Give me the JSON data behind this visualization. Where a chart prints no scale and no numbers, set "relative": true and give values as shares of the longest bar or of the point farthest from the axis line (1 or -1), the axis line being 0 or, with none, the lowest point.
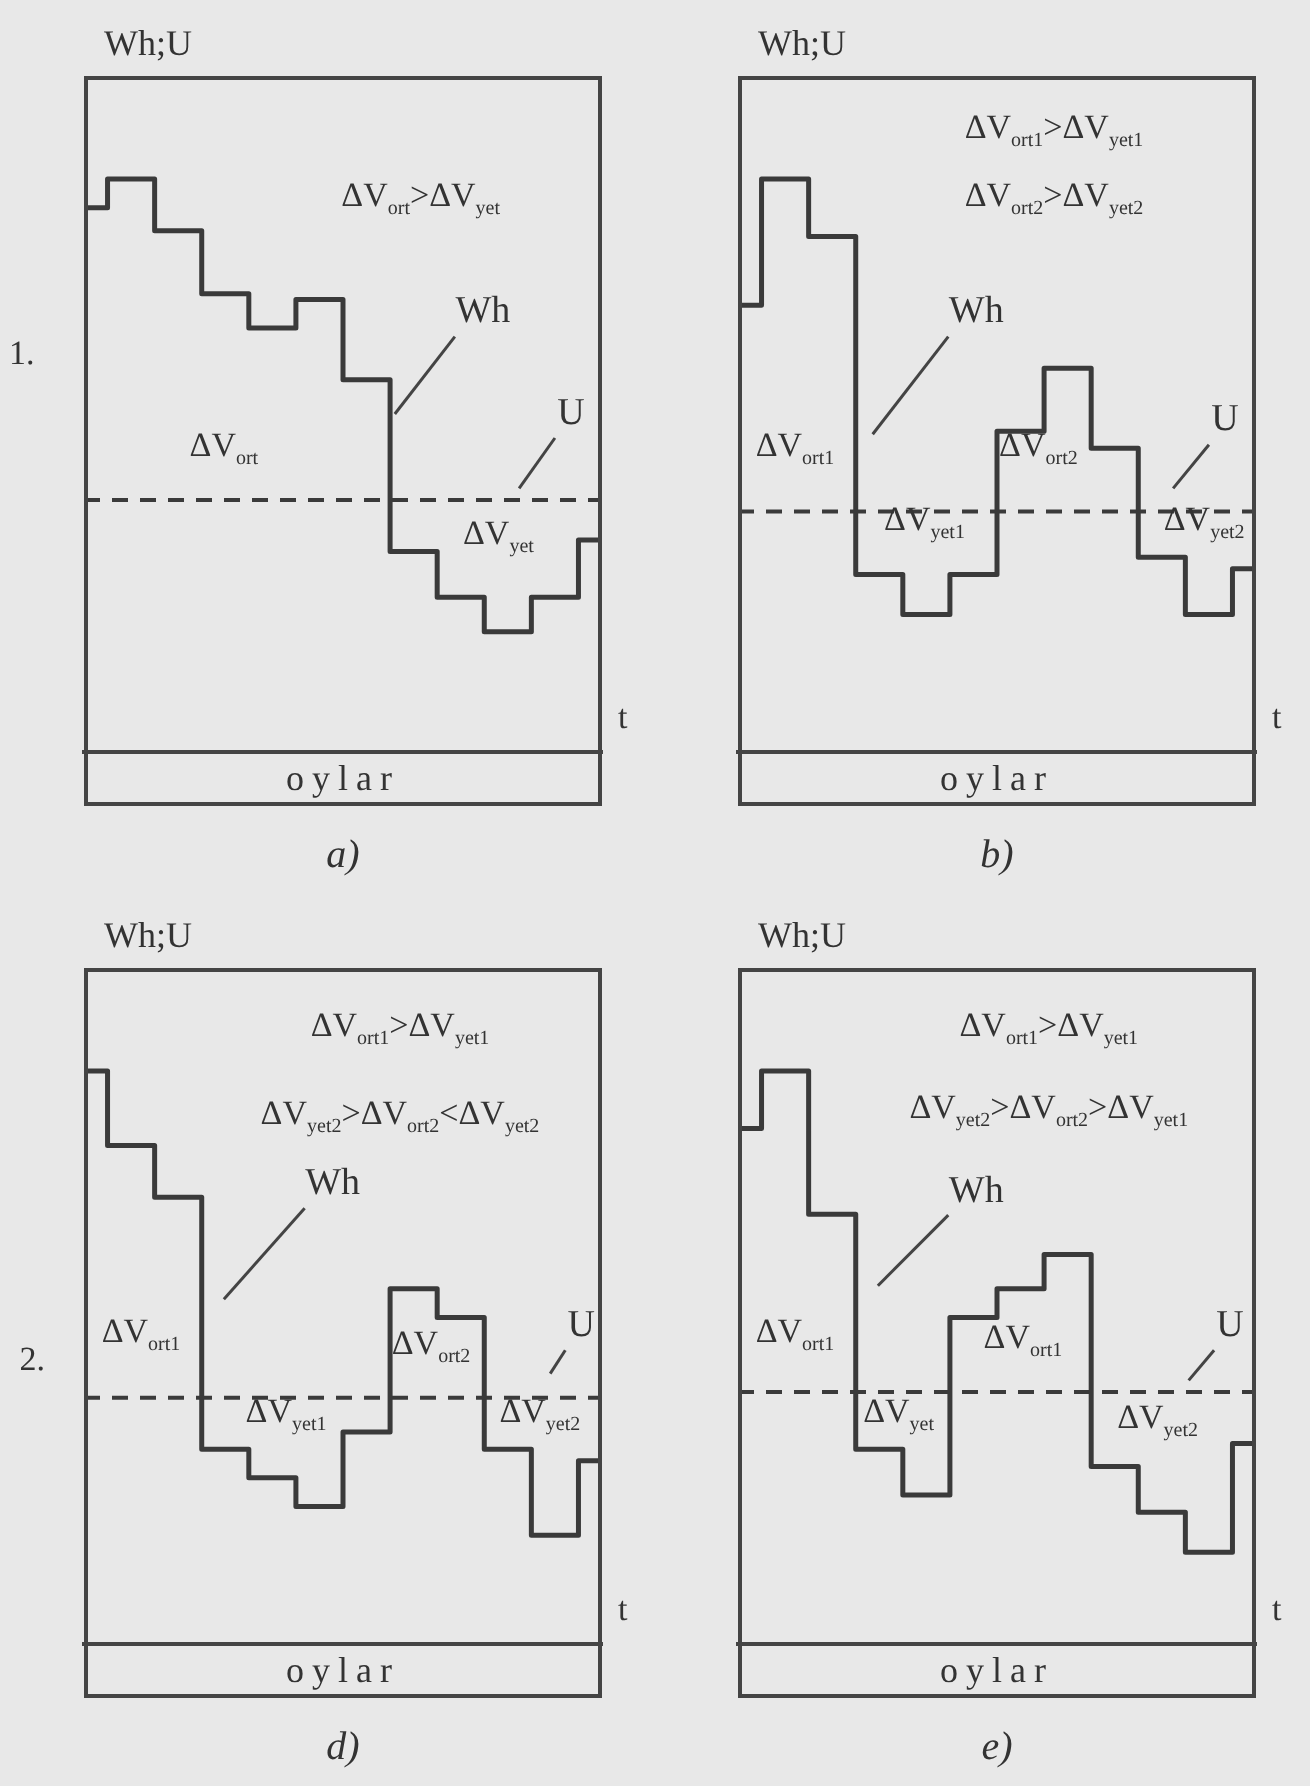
{
  "chart_data": [
    {
      "type": "step",
      "title": "a)",
      "xlabel": "oylar",
      "ylabel": "Wh;U",
      "categories": [
        null,
        null,
        null,
        null,
        null,
        null,
        null,
        null,
        null,
        null,
        null,
        null
      ],
      "relative": true,
      "tick_labels": false,
      "line_style": "solid",
      "series": [
        {
          "name": "Wh",
          "color": "#3a3a3a",
          "values": [
            0.95,
            1,
            0.91,
            0.8,
            0.74,
            0.79,
            0.65,
            0.35,
            0.27,
            0.21,
            0.27,
            0.37
          ]
        }
      ],
      "ref_lines": [
        {
          "axis": "y",
          "value": 0.44,
          "label": "U",
          "color": "#3a3a3a",
          "line_style": "dashed"
        }
      ],
      "annotations": [
        "ΔV$_{ort}$>ΔV$_{yet}$",
        "ΔV$_{ort}$",
        "ΔV$_{yet}$",
        "1.",
        "t"
      ]
    },
    {
      "type": "step",
      "title": "b)",
      "xlabel": "oylar",
      "ylabel": "Wh;U",
      "categories": [
        null,
        null,
        null,
        null,
        null,
        null,
        null,
        null,
        null,
        null,
        null,
        null
      ],
      "relative": true,
      "tick_labels": false,
      "line_style": "solid",
      "series": [
        {
          "name": "Wh",
          "color": "#3a3a3a",
          "values": [
            0.78,
            1,
            0.9,
            0.31,
            0.24,
            0.31,
            0.56,
            0.67,
            0.53,
            0.34,
            0.24,
            0.32
          ]
        }
      ],
      "ref_lines": [
        {
          "axis": "y",
          "value": 0.42,
          "label": "U",
          "color": "#3a3a3a",
          "line_style": "dashed"
        }
      ],
      "annotations": [
        "ΔV$_{ort1}$>ΔV$_{yet1}$",
        "ΔV$_{ort2}$>ΔV$_{yet2}$",
        "ΔV$_{ort1}$",
        "ΔV$_{yet1}$",
        "ΔV$_{ort2}$",
        "ΔV$_{yet2}$",
        "t"
      ]
    },
    {
      "type": "step",
      "title": "d)",
      "xlabel": "oylar",
      "ylabel": "Wh;U",
      "categories": [
        null,
        null,
        null,
        null,
        null,
        null,
        null,
        null,
        null,
        null,
        null,
        null
      ],
      "relative": true,
      "tick_labels": false,
      "line_style": "solid",
      "series": [
        {
          "name": "Wh",
          "color": "#3a3a3a",
          "values": [
            1,
            0.87,
            0.78,
            0.34,
            0.29,
            0.24,
            0.37,
            0.62,
            0.57,
            0.34,
            0.19,
            0.32
          ]
        }
      ],
      "ref_lines": [
        {
          "axis": "y",
          "value": 0.43,
          "label": "U",
          "color": "#3a3a3a",
          "line_style": "dashed"
        }
      ],
      "annotations": [
        "ΔV$_{ort1}$>ΔV$_{yet1}$",
        "ΔV$_{yet2}$>ΔV$_{ort2}$<ΔV$_{yet2}$",
        "ΔV$_{ort1}$",
        "ΔV$_{yet1}$",
        "ΔV$_{ort2}$",
        "ΔV$_{yet2}$",
        "2.",
        "t"
      ]
    },
    {
      "type": "step",
      "title": "e)",
      "xlabel": "oylar",
      "ylabel": "Wh;U",
      "categories": [
        null,
        null,
        null,
        null,
        null,
        null,
        null,
        null,
        null,
        null,
        null,
        null
      ],
      "relative": true,
      "tick_labels": false,
      "line_style": "solid",
      "series": [
        {
          "name": "Wh",
          "color": "#3a3a3a",
          "values": [
            0.9,
            1,
            0.75,
            0.34,
            0.26,
            0.57,
            0.62,
            0.68,
            0.31,
            0.23,
            0.16,
            0.35
          ]
        }
      ],
      "ref_lines": [
        {
          "axis": "y",
          "value": 0.44,
          "label": "U",
          "color": "#3a3a3a",
          "line_style": "dashed"
        }
      ],
      "annotations": [
        "ΔV$_{ort1}$>ΔV$_{yet1}$",
        "ΔV$_{yet2}$>ΔV$_{ort2}$>ΔV$_{yet1}$",
        "ΔV$_{ort1}$",
        "ΔV$_{yet}$",
        "ΔV$_{ort1}$",
        "ΔV$_{yet2}$",
        "t"
      ]
    }
  ]
}
